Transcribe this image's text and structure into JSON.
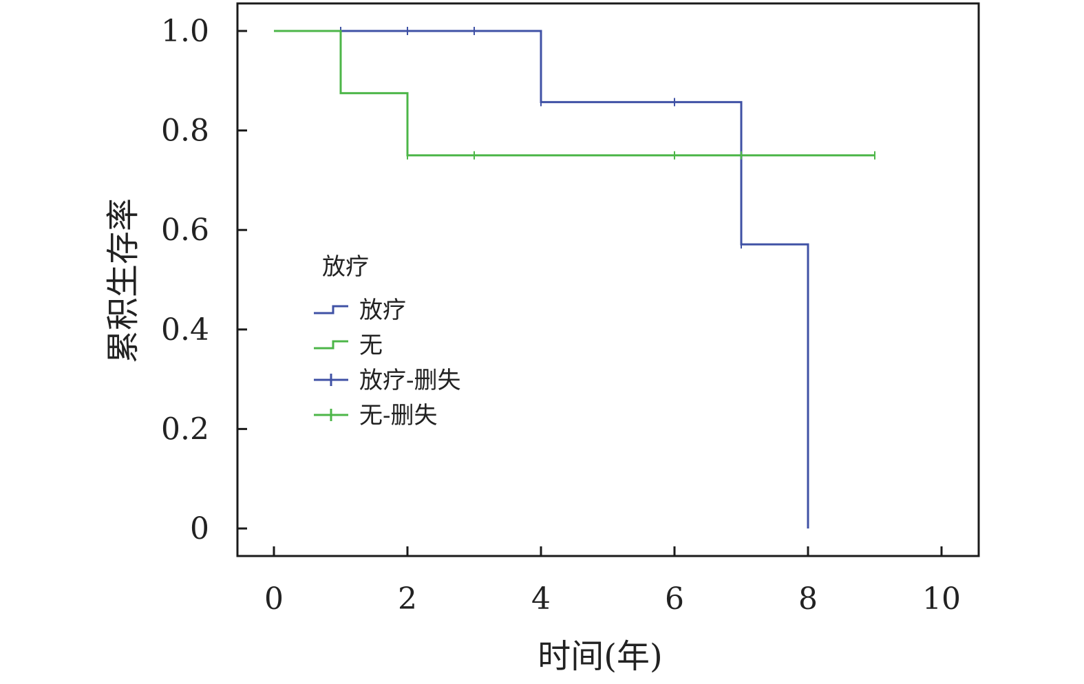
{
  "chart_data": {
    "type": "line",
    "subtype": "kaplan-meier-step",
    "title": "",
    "xlabel": "时间(年)",
    "ylabel": "累积生存率",
    "xlim": [
      0,
      10
    ],
    "ylim": [
      0,
      1.0
    ],
    "x_ticks": [
      "0",
      "2",
      "4",
      "6",
      "8",
      "10"
    ],
    "y_ticks": [
      "0",
      "0.2",
      "0.4",
      "0.6",
      "0.8",
      "1.0"
    ],
    "grid": false,
    "legend": {
      "title": "放疗",
      "position": "left-middle",
      "entries": [
        {
          "label": "放疗",
          "marker": "step",
          "color": "#3f51a5"
        },
        {
          "label": "无",
          "marker": "step",
          "color": "#4cb648"
        },
        {
          "label": "放疗-删失",
          "marker": "plus",
          "color": "#3f51a5"
        },
        {
          "label": "无-删失",
          "marker": "plus",
          "color": "#4cb648"
        }
      ]
    },
    "series": [
      {
        "name": "放疗",
        "color": "#3f51a5",
        "steps": [
          {
            "x": 0,
            "y": 1.0
          },
          {
            "x": 4,
            "y": 0.857
          },
          {
            "x": 7,
            "y": 0.571
          },
          {
            "x": 8,
            "y": 0.0
          }
        ],
        "end_x": 8,
        "censored": [
          {
            "x": 1,
            "y": 1.0
          },
          {
            "x": 2,
            "y": 1.0
          },
          {
            "x": 3,
            "y": 1.0
          },
          {
            "x": 4,
            "y": 0.857
          },
          {
            "x": 6,
            "y": 0.857
          },
          {
            "x": 7,
            "y": 0.571
          }
        ]
      },
      {
        "name": "无",
        "color": "#4cb648",
        "steps": [
          {
            "x": 0,
            "y": 1.0
          },
          {
            "x": 1,
            "y": 0.875
          },
          {
            "x": 2,
            "y": 0.75
          }
        ],
        "end_x": 9,
        "censored": [
          {
            "x": 2,
            "y": 0.75
          },
          {
            "x": 3,
            "y": 0.75
          },
          {
            "x": 6,
            "y": 0.75
          },
          {
            "x": 7,
            "y": 0.75
          },
          {
            "x": 9,
            "y": 0.75
          }
        ]
      }
    ]
  }
}
